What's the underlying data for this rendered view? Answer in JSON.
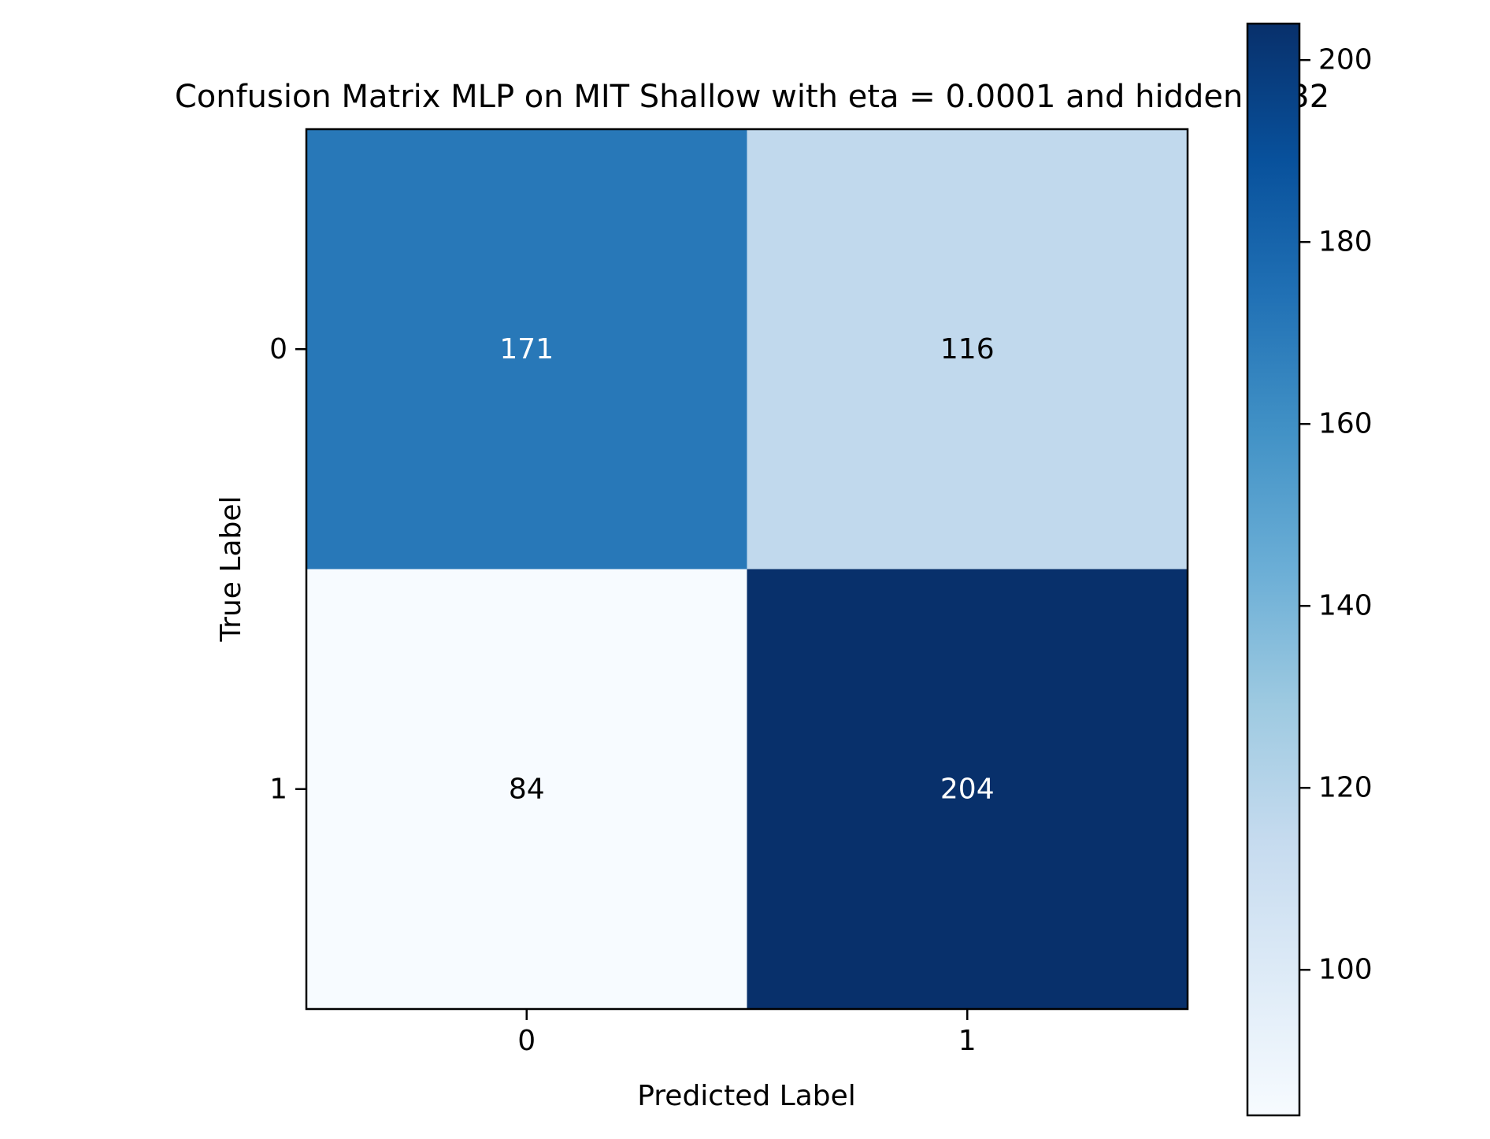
{
  "chart_data": {
    "type": "heatmap",
    "title": "Confusion Matrix MLP on MIT Shallow with eta = 0.0001 and hidden = 32",
    "xlabel": "Predicted Label",
    "ylabel": "True Label",
    "x_categories": [
      "0",
      "1"
    ],
    "y_categories": [
      "0",
      "1"
    ],
    "matrix": [
      [
        171,
        116
      ],
      [
        84,
        204
      ]
    ],
    "cell_labels": [
      [
        "171",
        "116"
      ],
      [
        "84",
        "204"
      ]
    ],
    "colormap": "Blues",
    "colorbar": {
      "range": [
        84,
        204
      ],
      "ticks": [
        "100",
        "120",
        "140",
        "160",
        "180",
        "200"
      ]
    },
    "grid": false
  }
}
